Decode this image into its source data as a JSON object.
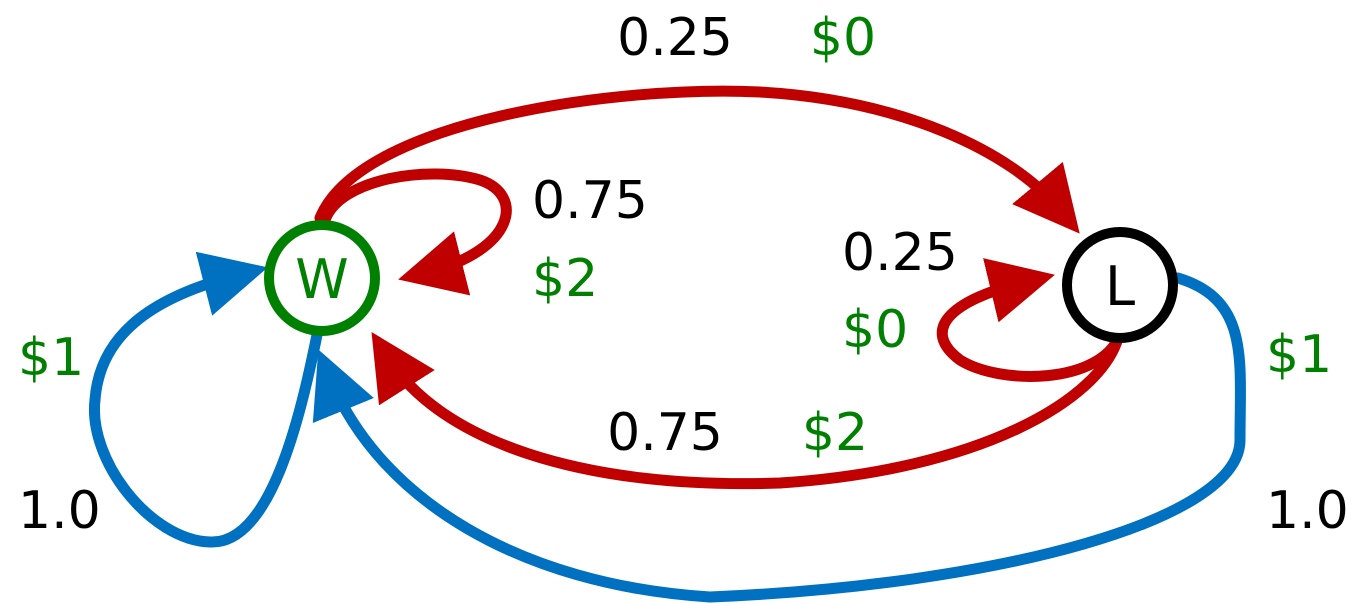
{
  "colors": {
    "red_action": "#c00000",
    "blue_action": "#0070c0",
    "green": "#008000",
    "black": "#000000"
  },
  "nodes": {
    "w": {
      "label": "W",
      "color": "#008000"
    },
    "l": {
      "label": "L",
      "color": "#000000"
    }
  },
  "edges": {
    "w_to_l_red": {
      "prob": "0.25",
      "reward": "$0"
    },
    "w_self_red": {
      "prob": "0.75",
      "reward": "$2"
    },
    "l_self_red": {
      "prob": "0.25",
      "reward": "$0"
    },
    "l_to_w_red": {
      "prob": "0.75",
      "reward": "$2"
    },
    "w_self_blue": {
      "prob": "1.0",
      "reward": "$1"
    },
    "l_to_w_blue": {
      "prob": "1.0",
      "reward": "$1"
    }
  }
}
